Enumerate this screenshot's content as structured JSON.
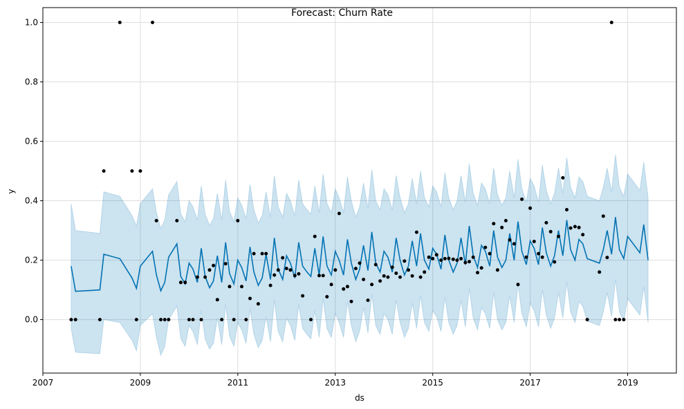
{
  "chart_data": {
    "type": "line",
    "title": "Forecast: Churn Rate",
    "xlabel": "ds",
    "ylabel": "y",
    "xlim": [
      2007.0,
      2020.0
    ],
    "ylim": [
      -0.18,
      1.05
    ],
    "grid": true,
    "x_ticks": [
      {
        "value": 2007,
        "label": "2007"
      },
      {
        "value": 2009,
        "label": "2009"
      },
      {
        "value": 2011,
        "label": "2011"
      },
      {
        "value": 2013,
        "label": "2013"
      },
      {
        "value": 2015,
        "label": "2015"
      },
      {
        "value": 2017,
        "label": "2017"
      },
      {
        "value": 2019,
        "label": "2019"
      }
    ],
    "y_ticks": [
      {
        "value": 0.0,
        "label": "0.0"
      },
      {
        "value": 0.2,
        "label": "0.2"
      },
      {
        "value": 0.4,
        "label": "0.4"
      },
      {
        "value": 0.6,
        "label": "0.6"
      },
      {
        "value": 0.8,
        "label": "0.8"
      },
      {
        "value": 1.0,
        "label": "1.0"
      }
    ],
    "colors": {
      "forecast": "#0072b2",
      "interval_fill": "#0072b2",
      "points": "#000000",
      "grid": "#dddddd"
    },
    "forecast": {
      "x": [
        2007.58,
        2007.67,
        2008.17,
        2008.25,
        2008.58,
        2008.83,
        2008.92,
        2009.0,
        2009.25,
        2009.33,
        2009.42,
        2009.5,
        2009.58,
        2009.75,
        2009.83,
        2009.92,
        2010.0,
        2010.08,
        2010.17,
        2010.25,
        2010.33,
        2010.42,
        2010.5,
        2010.58,
        2010.67,
        2010.75,
        2010.83,
        2010.92,
        2011.0,
        2011.08,
        2011.17,
        2011.25,
        2011.33,
        2011.42,
        2011.5,
        2011.58,
        2011.67,
        2011.75,
        2011.83,
        2011.92,
        2012.0,
        2012.08,
        2012.17,
        2012.25,
        2012.33,
        2012.42,
        2012.5,
        2012.58,
        2012.67,
        2012.75,
        2012.83,
        2012.92,
        2013.0,
        2013.08,
        2013.17,
        2013.25,
        2013.33,
        2013.42,
        2013.5,
        2013.58,
        2013.67,
        2013.75,
        2013.83,
        2013.92,
        2014.0,
        2014.08,
        2014.17,
        2014.25,
        2014.33,
        2014.42,
        2014.5,
        2014.58,
        2014.67,
        2014.75,
        2014.83,
        2014.92,
        2015.0,
        2015.08,
        2015.17,
        2015.25,
        2015.33,
        2015.42,
        2015.5,
        2015.58,
        2015.67,
        2015.75,
        2015.83,
        2015.92,
        2016.0,
        2016.08,
        2016.17,
        2016.25,
        2016.33,
        2016.42,
        2016.5,
        2016.58,
        2016.67,
        2016.75,
        2016.83,
        2016.92,
        2017.0,
        2017.08,
        2017.17,
        2017.25,
        2017.33,
        2017.42,
        2017.5,
        2017.58,
        2017.67,
        2017.75,
        2017.83,
        2017.92,
        2018.0,
        2018.08,
        2018.17,
        2018.42,
        2018.5,
        2018.58,
        2018.67,
        2018.75,
        2018.83,
        2018.92,
        2019.0,
        2019.25,
        2019.33,
        2019.42
      ],
      "yhat": [
        0.18,
        0.095,
        0.1,
        0.22,
        0.205,
        0.14,
        0.105,
        0.18,
        0.23,
        0.15,
        0.097,
        0.125,
        0.21,
        0.255,
        0.145,
        0.12,
        0.19,
        0.17,
        0.125,
        0.24,
        0.145,
        0.107,
        0.13,
        0.215,
        0.125,
        0.26,
        0.155,
        0.12,
        0.2,
        0.175,
        0.13,
        0.245,
        0.16,
        0.115,
        0.14,
        0.22,
        0.135,
        0.275,
        0.17,
        0.135,
        0.215,
        0.19,
        0.14,
        0.26,
        0.18,
        0.16,
        0.145,
        0.24,
        0.15,
        0.28,
        0.18,
        0.15,
        0.23,
        0.2,
        0.15,
        0.27,
        0.19,
        0.135,
        0.17,
        0.25,
        0.165,
        0.295,
        0.19,
        0.16,
        0.23,
        0.21,
        0.16,
        0.275,
        0.2,
        0.15,
        0.18,
        0.265,
        0.18,
        0.29,
        0.2,
        0.17,
        0.24,
        0.22,
        0.17,
        0.285,
        0.2,
        0.16,
        0.19,
        0.275,
        0.185,
        0.315,
        0.215,
        0.175,
        0.25,
        0.23,
        0.18,
        0.3,
        0.21,
        0.175,
        0.2,
        0.29,
        0.2,
        0.33,
        0.23,
        0.185,
        0.265,
        0.24,
        0.185,
        0.31,
        0.225,
        0.18,
        0.215,
        0.3,
        0.215,
        0.335,
        0.235,
        0.2,
        0.27,
        0.255,
        0.205,
        0.19,
        0.235,
        0.3,
        0.22,
        0.345,
        0.235,
        0.205,
        0.28,
        0.225,
        0.32,
        0.2
      ],
      "yhat_lower": [
        -0.03,
        -0.11,
        -0.115,
        0.0,
        -0.01,
        -0.07,
        -0.105,
        -0.02,
        0.02,
        -0.06,
        -0.12,
        -0.09,
        0.0,
        0.045,
        -0.065,
        -0.09,
        -0.02,
        -0.04,
        -0.085,
        0.03,
        -0.065,
        -0.1,
        -0.08,
        0.005,
        -0.085,
        0.05,
        -0.055,
        -0.09,
        -0.01,
        -0.035,
        -0.08,
        0.035,
        -0.05,
        -0.095,
        -0.07,
        0.01,
        -0.075,
        0.065,
        -0.04,
        -0.075,
        0.005,
        -0.02,
        -0.07,
        0.05,
        -0.03,
        -0.05,
        -0.065,
        0.03,
        -0.06,
        0.07,
        -0.03,
        -0.06,
        0.02,
        -0.01,
        -0.06,
        0.06,
        -0.02,
        -0.075,
        -0.04,
        0.04,
        -0.045,
        0.085,
        -0.02,
        -0.05,
        0.02,
        0.0,
        -0.05,
        0.065,
        -0.01,
        -0.06,
        -0.03,
        0.055,
        -0.03,
        0.08,
        -0.01,
        -0.04,
        0.03,
        0.01,
        -0.04,
        0.075,
        -0.01,
        -0.05,
        -0.02,
        0.065,
        -0.025,
        0.105,
        0.005,
        -0.035,
        0.04,
        0.02,
        -0.03,
        0.09,
        0.0,
        -0.035,
        -0.01,
        0.08,
        -0.01,
        0.12,
        0.02,
        -0.025,
        0.055,
        0.03,
        -0.025,
        0.1,
        0.015,
        -0.03,
        0.005,
        0.09,
        0.005,
        0.125,
        0.025,
        -0.01,
        0.06,
        0.045,
        -0.005,
        -0.02,
        0.025,
        0.09,
        0.01,
        0.135,
        0.025,
        -0.005,
        0.07,
        0.015,
        0.11,
        -0.01
      ],
      "yhat_upper": [
        0.39,
        0.3,
        0.29,
        0.43,
        0.415,
        0.35,
        0.315,
        0.39,
        0.44,
        0.36,
        0.307,
        0.335,
        0.42,
        0.465,
        0.355,
        0.33,
        0.4,
        0.38,
        0.335,
        0.45,
        0.355,
        0.317,
        0.34,
        0.425,
        0.335,
        0.47,
        0.365,
        0.33,
        0.41,
        0.385,
        0.34,
        0.455,
        0.37,
        0.325,
        0.35,
        0.43,
        0.345,
        0.485,
        0.38,
        0.345,
        0.425,
        0.4,
        0.35,
        0.47,
        0.39,
        0.37,
        0.355,
        0.45,
        0.36,
        0.49,
        0.39,
        0.36,
        0.44,
        0.41,
        0.36,
        0.48,
        0.4,
        0.345,
        0.38,
        0.46,
        0.375,
        0.505,
        0.4,
        0.37,
        0.44,
        0.42,
        0.37,
        0.485,
        0.41,
        0.36,
        0.39,
        0.475,
        0.39,
        0.5,
        0.41,
        0.38,
        0.45,
        0.43,
        0.38,
        0.495,
        0.41,
        0.37,
        0.4,
        0.485,
        0.395,
        0.525,
        0.425,
        0.385,
        0.46,
        0.44,
        0.39,
        0.51,
        0.42,
        0.385,
        0.41,
        0.5,
        0.41,
        0.54,
        0.44,
        0.395,
        0.475,
        0.45,
        0.395,
        0.52,
        0.435,
        0.39,
        0.425,
        0.51,
        0.425,
        0.545,
        0.445,
        0.41,
        0.48,
        0.465,
        0.415,
        0.4,
        0.445,
        0.51,
        0.43,
        0.555,
        0.445,
        0.415,
        0.49,
        0.435,
        0.53,
        0.41
      ]
    },
    "observations": {
      "x": [
        2007.58,
        2007.67,
        2008.17,
        2008.25,
        2008.58,
        2008.83,
        2008.92,
        2009.0,
        2009.25,
        2009.33,
        2009.42,
        2009.5,
        2009.58,
        2009.75,
        2009.83,
        2009.92,
        2010.0,
        2010.08,
        2010.17,
        2010.25,
        2010.33,
        2010.42,
        2010.5,
        2010.58,
        2010.67,
        2010.75,
        2010.83,
        2010.92,
        2011.0,
        2011.08,
        2011.17,
        2011.25,
        2011.33,
        2011.42,
        2011.5,
        2011.58,
        2011.67,
        2011.75,
        2011.83,
        2011.92,
        2012.0,
        2012.08,
        2012.17,
        2012.25,
        2012.33,
        2012.5,
        2012.58,
        2012.67,
        2012.75,
        2012.83,
        2012.92,
        2013.0,
        2013.08,
        2013.17,
        2013.25,
        2013.33,
        2013.42,
        2013.5,
        2013.58,
        2013.67,
        2013.75,
        2013.83,
        2013.92,
        2014.0,
        2014.08,
        2014.17,
        2014.25,
        2014.33,
        2014.42,
        2014.5,
        2014.58,
        2014.67,
        2014.75,
        2014.83,
        2014.92,
        2015.0,
        2015.08,
        2015.17,
        2015.25,
        2015.33,
        2015.42,
        2015.5,
        2015.58,
        2015.67,
        2015.75,
        2015.83,
        2015.92,
        2016.0,
        2016.08,
        2016.17,
        2016.25,
        2016.33,
        2016.42,
        2016.5,
        2016.58,
        2016.67,
        2016.75,
        2016.83,
        2016.92,
        2017.0,
        2017.08,
        2017.17,
        2017.25,
        2017.33,
        2017.42,
        2017.5,
        2017.58,
        2017.67,
        2017.75,
        2017.83,
        2017.92,
        2018.0,
        2018.08,
        2018.17,
        2018.42,
        2018.5,
        2018.58,
        2018.67,
        2018.75,
        2018.83,
        2018.92
      ],
      "y": [
        0.0,
        0.0,
        0.0,
        0.5,
        1.0,
        0.5,
        0.0,
        0.5,
        1.0,
        0.333,
        0.0,
        0.0,
        0.0,
        0.333,
        0.125,
        0.125,
        0.0,
        0.0,
        0.143,
        0.0,
        0.143,
        0.167,
        0.182,
        0.067,
        0.0,
        0.188,
        0.111,
        0.0,
        0.333,
        0.111,
        0.0,
        0.071,
        0.222,
        0.053,
        0.222,
        0.222,
        0.115,
        0.15,
        0.167,
        0.208,
        0.172,
        0.167,
        0.148,
        0.154,
        0.08,
        0.0,
        0.28,
        0.148,
        0.148,
        0.077,
        0.118,
        0.167,
        0.357,
        0.103,
        0.111,
        0.061,
        0.172,
        0.19,
        0.135,
        0.065,
        0.118,
        0.185,
        0.13,
        0.147,
        0.143,
        0.176,
        0.156,
        0.143,
        0.197,
        0.167,
        0.147,
        0.294,
        0.143,
        0.16,
        0.21,
        0.205,
        0.218,
        0.2,
        0.205,
        0.206,
        0.203,
        0.2,
        0.205,
        0.192,
        0.195,
        0.21,
        0.158,
        0.174,
        0.243,
        0.222,
        0.323,
        0.167,
        0.31,
        0.333,
        0.268,
        0.255,
        0.118,
        0.405,
        0.21,
        0.375,
        0.263,
        0.222,
        0.21,
        0.326,
        0.296,
        0.194,
        0.28,
        0.477,
        0.37,
        0.308,
        0.313,
        0.31,
        0.286,
        0.0,
        0.16,
        0.348,
        0.209,
        1.0,
        0.0,
        0.0,
        0.0
      ]
    }
  }
}
